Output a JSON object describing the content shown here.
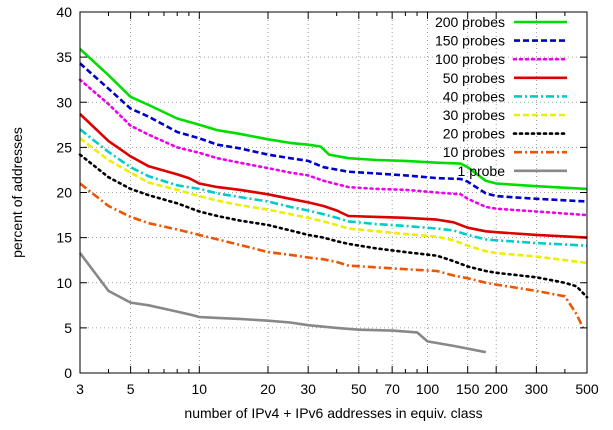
{
  "chart_data": {
    "type": "line",
    "title": "",
    "xlabel": "number of IPv4 + IPv6 addresses in equiv. class",
    "ylabel": "percent of addresses",
    "xscale": "log",
    "xlim": [
      3,
      500
    ],
    "ylim": [
      0,
      40
    ],
    "x_ticks": [
      3,
      5,
      10,
      20,
      30,
      50,
      70,
      100,
      150,
      200,
      300,
      500
    ],
    "x_tick_labels": [
      "3",
      "5",
      "10",
      "20",
      "30",
      "50",
      "70",
      "100",
      "150",
      "200",
      "300",
      "500"
    ],
    "y_ticks": [
      0,
      5,
      10,
      15,
      20,
      25,
      30,
      35,
      40
    ],
    "y_tick_labels": [
      "0",
      "5",
      "10",
      "15",
      "20",
      "25",
      "30",
      "35",
      "40"
    ],
    "grid": true,
    "legend_position": "top-right",
    "series": [
      {
        "name": "200 probes",
        "color": "#00dd00",
        "dash": "solid",
        "points": [
          [
            3,
            35.9
          ],
          [
            4,
            33
          ],
          [
            5,
            30.6
          ],
          [
            6,
            29.7
          ],
          [
            8,
            28.2
          ],
          [
            10,
            27.5
          ],
          [
            12,
            26.9
          ],
          [
            15,
            26.5
          ],
          [
            20,
            25.9
          ],
          [
            25,
            25.5
          ],
          [
            30,
            25.3
          ],
          [
            34,
            25.1
          ],
          [
            37,
            24.2
          ],
          [
            45,
            23.8
          ],
          [
            60,
            23.6
          ],
          [
            80,
            23.5
          ],
          [
            110,
            23.3
          ],
          [
            140,
            23.2
          ],
          [
            150,
            22.8
          ],
          [
            180,
            21.3
          ],
          [
            200,
            21.0
          ],
          [
            300,
            20.7
          ],
          [
            500,
            20.4
          ]
        ]
      },
      {
        "name": "150 probes",
        "color": "#0000cc",
        "dash": "dashed",
        "points": [
          [
            3,
            34.3
          ],
          [
            4,
            31.5
          ],
          [
            5,
            29.3
          ],
          [
            6,
            28.4
          ],
          [
            8,
            26.7
          ],
          [
            10,
            26.0
          ],
          [
            12,
            25.3
          ],
          [
            15,
            24.9
          ],
          [
            20,
            24.2
          ],
          [
            25,
            23.8
          ],
          [
            30,
            23.5
          ],
          [
            35,
            22.8
          ],
          [
            45,
            22.3
          ],
          [
            60,
            22.1
          ],
          [
            80,
            21.9
          ],
          [
            110,
            21.6
          ],
          [
            140,
            21.5
          ],
          [
            150,
            21.2
          ],
          [
            180,
            19.9
          ],
          [
            200,
            19.6
          ],
          [
            300,
            19.3
          ],
          [
            500,
            19.0
          ]
        ]
      },
      {
        "name": "100 probes",
        "color": "#ee00ee",
        "dash": "dotted",
        "points": [
          [
            3,
            32.5
          ],
          [
            4,
            29.8
          ],
          [
            5,
            27.4
          ],
          [
            6,
            26.4
          ],
          [
            8,
            25.0
          ],
          [
            10,
            24.4
          ],
          [
            12,
            23.8
          ],
          [
            15,
            23.3
          ],
          [
            20,
            22.7
          ],
          [
            25,
            22.2
          ],
          [
            30,
            21.9
          ],
          [
            35,
            21.3
          ],
          [
            45,
            20.6
          ],
          [
            60,
            20.4
          ],
          [
            80,
            20.3
          ],
          [
            110,
            20.0
          ],
          [
            140,
            19.8
          ],
          [
            150,
            19.3
          ],
          [
            180,
            18.4
          ],
          [
            200,
            18.2
          ],
          [
            300,
            17.9
          ],
          [
            500,
            17.5
          ]
        ]
      },
      {
        "name": "50 probes",
        "color": "#dd0000",
        "dash": "solid",
        "points": [
          [
            3,
            28.7
          ],
          [
            4,
            25.7
          ],
          [
            5,
            24.0
          ],
          [
            6,
            22.9
          ],
          [
            8,
            22.0
          ],
          [
            9,
            21.6
          ],
          [
            10,
            21.0
          ],
          [
            12,
            20.6
          ],
          [
            15,
            20.3
          ],
          [
            20,
            19.8
          ],
          [
            25,
            19.3
          ],
          [
            30,
            18.9
          ],
          [
            35,
            18.5
          ],
          [
            40,
            18.0
          ],
          [
            45,
            17.4
          ],
          [
            60,
            17.3
          ],
          [
            80,
            17.2
          ],
          [
            110,
            17.0
          ],
          [
            130,
            16.7
          ],
          [
            150,
            16.1
          ],
          [
            180,
            15.7
          ],
          [
            200,
            15.6
          ],
          [
            300,
            15.3
          ],
          [
            500,
            15.0
          ]
        ]
      },
      {
        "name": "40 probes",
        "color": "#00cccc",
        "dash": "dashdot",
        "points": [
          [
            3,
            27.0
          ],
          [
            4,
            24.5
          ],
          [
            5,
            22.8
          ],
          [
            6,
            21.8
          ],
          [
            8,
            20.8
          ],
          [
            10,
            20.4
          ],
          [
            12,
            19.9
          ],
          [
            15,
            19.5
          ],
          [
            20,
            19.0
          ],
          [
            25,
            18.4
          ],
          [
            30,
            18.0
          ],
          [
            35,
            17.6
          ],
          [
            40,
            17.2
          ],
          [
            45,
            16.8
          ],
          [
            60,
            16.5
          ],
          [
            80,
            16.3
          ],
          [
            110,
            16.0
          ],
          [
            130,
            15.8
          ],
          [
            150,
            15.3
          ],
          [
            180,
            14.8
          ],
          [
            200,
            14.7
          ],
          [
            300,
            14.4
          ],
          [
            500,
            14.1
          ]
        ]
      },
      {
        "name": "30 probes",
        "color": "#eeee00",
        "dash": "dashed",
        "points": [
          [
            3,
            26.0
          ],
          [
            4,
            23.6
          ],
          [
            5,
            22.2
          ],
          [
            6,
            21.1
          ],
          [
            8,
            20.3
          ],
          [
            10,
            19.6
          ],
          [
            12,
            19.1
          ],
          [
            15,
            18.6
          ],
          [
            20,
            18.1
          ],
          [
            25,
            17.6
          ],
          [
            30,
            17.2
          ],
          [
            35,
            16.8
          ],
          [
            40,
            16.4
          ],
          [
            45,
            16.0
          ],
          [
            60,
            15.7
          ],
          [
            80,
            15.4
          ],
          [
            110,
            15.1
          ],
          [
            130,
            14.7
          ],
          [
            150,
            14.1
          ],
          [
            180,
            13.5
          ],
          [
            200,
            13.3
          ],
          [
            300,
            12.9
          ],
          [
            500,
            12.2
          ]
        ]
      },
      {
        "name": "20 probes",
        "color": "#000000",
        "dash": "dotted",
        "points": [
          [
            3,
            24.2
          ],
          [
            4,
            21.7
          ],
          [
            5,
            20.4
          ],
          [
            6,
            19.7
          ],
          [
            8,
            18.8
          ],
          [
            10,
            17.9
          ],
          [
            12,
            17.4
          ],
          [
            15,
            16.9
          ],
          [
            20,
            16.4
          ],
          [
            25,
            15.8
          ],
          [
            30,
            15.3
          ],
          [
            35,
            15.0
          ],
          [
            40,
            14.6
          ],
          [
            45,
            14.3
          ],
          [
            60,
            13.8
          ],
          [
            80,
            13.4
          ],
          [
            110,
            13.0
          ],
          [
            130,
            12.4
          ],
          [
            150,
            11.8
          ],
          [
            180,
            11.3
          ],
          [
            200,
            11.1
          ],
          [
            300,
            10.6
          ],
          [
            400,
            10.0
          ],
          [
            450,
            9.6
          ],
          [
            500,
            8.4
          ]
        ]
      },
      {
        "name": "10 probes",
        "color": "#ee5500",
        "dash": "dashdot",
        "points": [
          [
            3,
            21.0
          ],
          [
            4,
            18.5
          ],
          [
            5,
            17.3
          ],
          [
            6,
            16.6
          ],
          [
            8,
            15.9
          ],
          [
            10,
            15.3
          ],
          [
            12,
            14.8
          ],
          [
            15,
            14.2
          ],
          [
            20,
            13.4
          ],
          [
            25,
            13.1
          ],
          [
            30,
            12.8
          ],
          [
            35,
            12.6
          ],
          [
            40,
            12.3
          ],
          [
            45,
            11.9
          ],
          [
            60,
            11.7
          ],
          [
            80,
            11.5
          ],
          [
            110,
            11.3
          ],
          [
            130,
            10.8
          ],
          [
            150,
            10.5
          ],
          [
            180,
            10.0
          ],
          [
            200,
            9.8
          ],
          [
            300,
            9.1
          ],
          [
            400,
            8.5
          ],
          [
            450,
            6.5
          ],
          [
            480,
            5.0
          ]
        ]
      },
      {
        "name": "1 probe",
        "color": "#888888",
        "dash": "solid",
        "points": [
          [
            3,
            13.3
          ],
          [
            4,
            9.1
          ],
          [
            5,
            7.8
          ],
          [
            6,
            7.5
          ],
          [
            8,
            6.8
          ],
          [
            9,
            6.5
          ],
          [
            10,
            6.2
          ],
          [
            12,
            6.1
          ],
          [
            15,
            6.0
          ],
          [
            20,
            5.8
          ],
          [
            25,
            5.6
          ],
          [
            30,
            5.3
          ],
          [
            40,
            5.0
          ],
          [
            50,
            4.8
          ],
          [
            70,
            4.7
          ],
          [
            90,
            4.5
          ],
          [
            100,
            3.5
          ],
          [
            130,
            3.0
          ],
          [
            150,
            2.7
          ],
          [
            180,
            2.3
          ]
        ]
      }
    ]
  }
}
